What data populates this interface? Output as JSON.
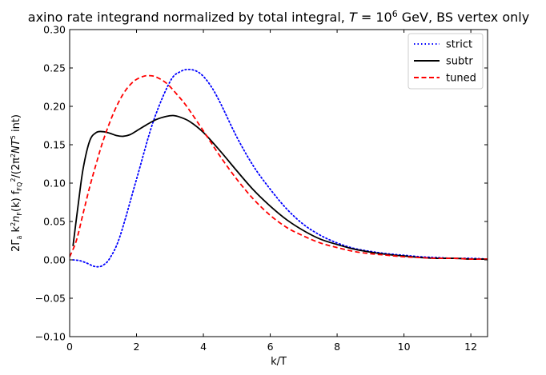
{
  "chart_data": {
    "type": "line",
    "title_parts": {
      "prefix": "axino rate integrand normalized by total integral, ",
      "T": "T",
      "eq": " = 10",
      "exp": "6",
      "suffix": " GeV, BS vertex only"
    },
    "xlabel": "k/T",
    "ylabel": "2Γ_ã k² n_F(k) f_FQ² / (2π² N T⁵ int)",
    "ylabel_parts": {
      "a": "2Γ",
      "a_sub": "ã",
      "b": " k",
      "b_sup": "2",
      "c": "n",
      "c_sub": "F",
      "d": "(k) f",
      "d_sub": "FQ",
      "d_sup": "2",
      "e": "/(2π",
      "e_sup": "2",
      "f": "NT",
      "f_sup": "5",
      "g": " int)"
    },
    "xlim": [
      0,
      12.5
    ],
    "ylim": [
      -0.1,
      0.3
    ],
    "xticks": [
      0,
      2,
      4,
      6,
      8,
      10,
      12
    ],
    "yticks": [
      -0.1,
      -0.05,
      0.0,
      0.05,
      0.1,
      0.15,
      0.2,
      0.25,
      0.3
    ],
    "xtick_labels": [
      "0",
      "2",
      "4",
      "6",
      "8",
      "10",
      "12"
    ],
    "ytick_labels": [
      "−0.10",
      "−0.05",
      "0.00",
      "0.05",
      "0.10",
      "0.15",
      "0.20",
      "0.25",
      "0.30"
    ],
    "legend_position": "top-right",
    "series": [
      {
        "name": "strict",
        "color": "#0000ff",
        "style": "dotted",
        "x": [
          0.1,
          0.3,
          0.5,
          0.7,
          0.85,
          1.0,
          1.2,
          1.5,
          2.0,
          2.5,
          3.0,
          3.3,
          3.6,
          3.9,
          4.2,
          4.5,
          5.0,
          5.5,
          6.0,
          6.5,
          7.0,
          7.5,
          8.0,
          8.5,
          9.0,
          9.5,
          10.0,
          10.5,
          11.0,
          11.5,
          12.0,
          12.5
        ],
        "values": [
          0.0,
          -0.001,
          -0.004,
          -0.008,
          -0.009,
          -0.007,
          0.002,
          0.03,
          0.105,
          0.18,
          0.232,
          0.245,
          0.248,
          0.243,
          0.228,
          0.205,
          0.16,
          0.122,
          0.092,
          0.066,
          0.046,
          0.032,
          0.022,
          0.015,
          0.011,
          0.008,
          0.006,
          0.004,
          0.003,
          0.002,
          0.002,
          0.001
        ]
      },
      {
        "name": "subtr",
        "color": "#000000",
        "style": "solid",
        "x": [
          0.1,
          0.25,
          0.4,
          0.6,
          0.8,
          1.0,
          1.2,
          1.4,
          1.6,
          1.8,
          2.0,
          2.3,
          2.6,
          2.9,
          3.1,
          3.3,
          3.6,
          4.0,
          4.5,
          5.0,
          5.5,
          6.0,
          6.5,
          7.0,
          7.5,
          8.0,
          8.5,
          9.0,
          9.5,
          10.0,
          10.5,
          11.0,
          11.5,
          12.0,
          12.5
        ],
        "values": [
          0.018,
          0.07,
          0.118,
          0.155,
          0.166,
          0.167,
          0.165,
          0.162,
          0.161,
          0.163,
          0.168,
          0.176,
          0.183,
          0.187,
          0.188,
          0.186,
          0.18,
          0.166,
          0.142,
          0.116,
          0.091,
          0.07,
          0.052,
          0.038,
          0.027,
          0.02,
          0.014,
          0.01,
          0.007,
          0.005,
          0.003,
          0.002,
          0.002,
          0.001,
          0.001
        ]
      },
      {
        "name": "tuned",
        "color": "#ff0000",
        "style": "dashed",
        "x": [
          0.0,
          0.2,
          0.4,
          0.6,
          0.8,
          1.0,
          1.3,
          1.6,
          1.9,
          2.2,
          2.4,
          2.6,
          2.9,
          3.2,
          3.5,
          4.0,
          4.5,
          5.0,
          5.5,
          6.0,
          6.5,
          7.0,
          7.5,
          8.0,
          8.5,
          9.0,
          9.5,
          10.0,
          10.5,
          11.0,
          11.5,
          12.0,
          12.5
        ],
        "values": [
          0.004,
          0.025,
          0.06,
          0.095,
          0.126,
          0.155,
          0.19,
          0.216,
          0.232,
          0.239,
          0.24,
          0.238,
          0.23,
          0.216,
          0.2,
          0.168,
          0.135,
          0.105,
          0.079,
          0.058,
          0.042,
          0.031,
          0.022,
          0.016,
          0.011,
          0.008,
          0.006,
          0.004,
          0.003,
          0.002,
          0.002,
          0.001,
          0.001
        ]
      }
    ]
  }
}
